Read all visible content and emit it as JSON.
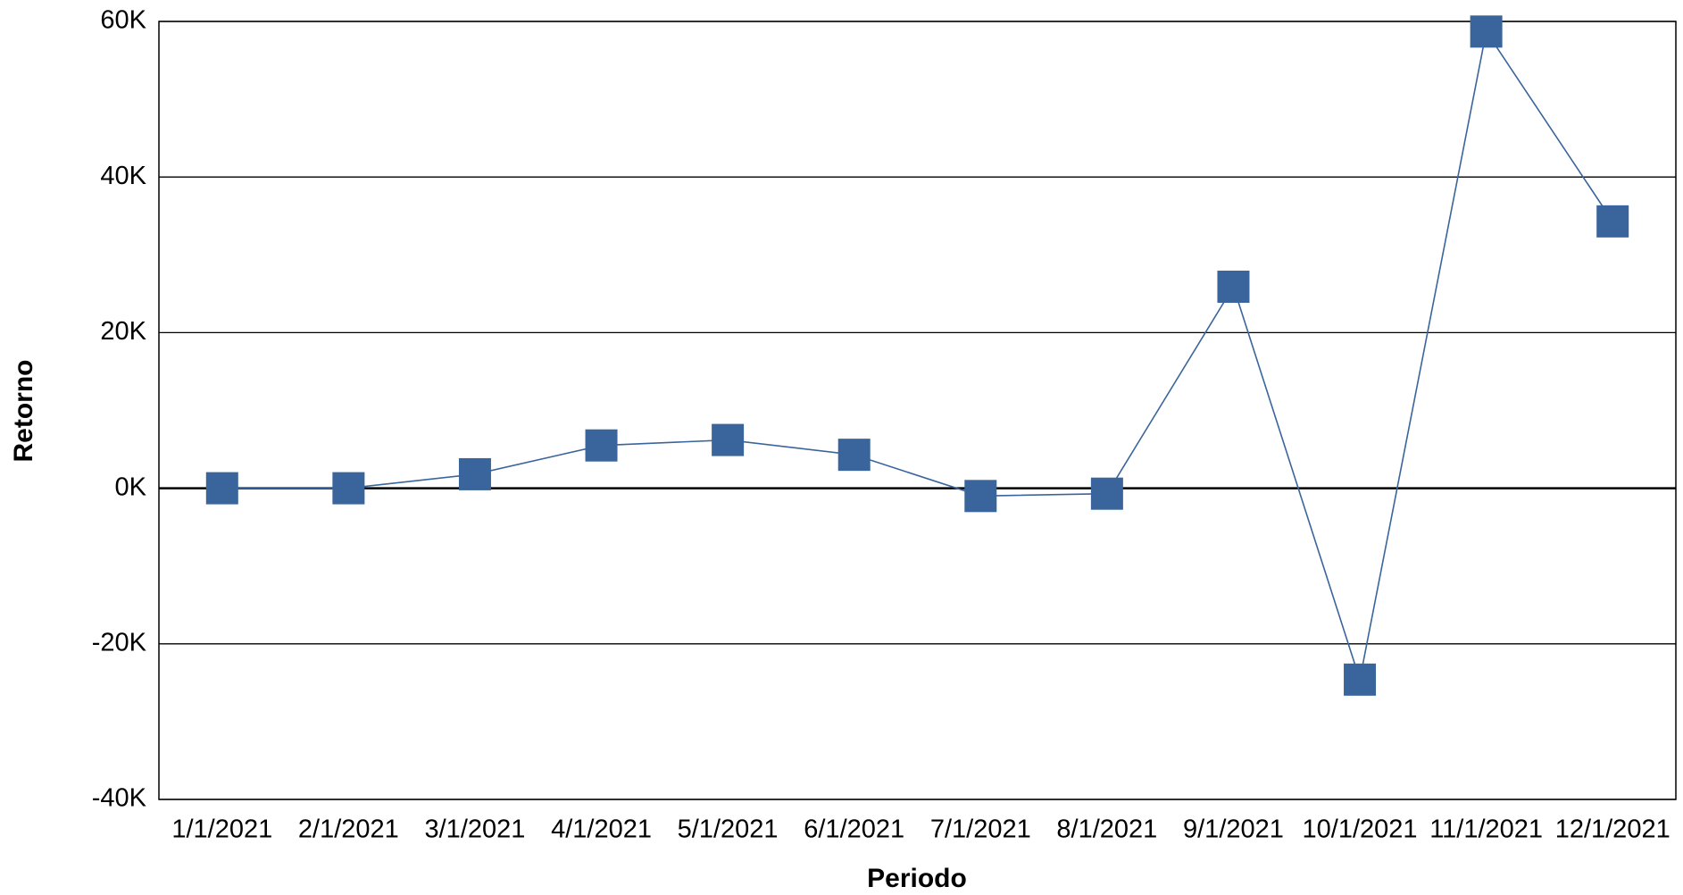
{
  "chart_data": {
    "type": "line",
    "x_label": "Periodo",
    "y_label": "Retorno",
    "categories": [
      "1/1/2021",
      "2/1/2021",
      "3/1/2021",
      "4/1/2021",
      "5/1/2021",
      "6/1/2021",
      "7/1/2021",
      "8/1/2021",
      "9/1/2021",
      "10/1/2021",
      "11/1/2021",
      "12/1/2021"
    ],
    "values": [
      0,
      0,
      1800,
      5500,
      6200,
      4300,
      -1000,
      -700,
      25900,
      -24600,
      58700,
      34300
    ],
    "color": "#3a659c",
    "ylim": [
      -40000,
      60000
    ],
    "yticks": [
      {
        "value": -40000,
        "label": "-40K"
      },
      {
        "value": -20000,
        "label": "-20K"
      },
      {
        "value": 0,
        "label": "0K"
      },
      {
        "value": 20000,
        "label": "20K"
      },
      {
        "value": 40000,
        "label": "40K"
      },
      {
        "value": 60000,
        "label": "60K"
      }
    ],
    "grid": true
  }
}
